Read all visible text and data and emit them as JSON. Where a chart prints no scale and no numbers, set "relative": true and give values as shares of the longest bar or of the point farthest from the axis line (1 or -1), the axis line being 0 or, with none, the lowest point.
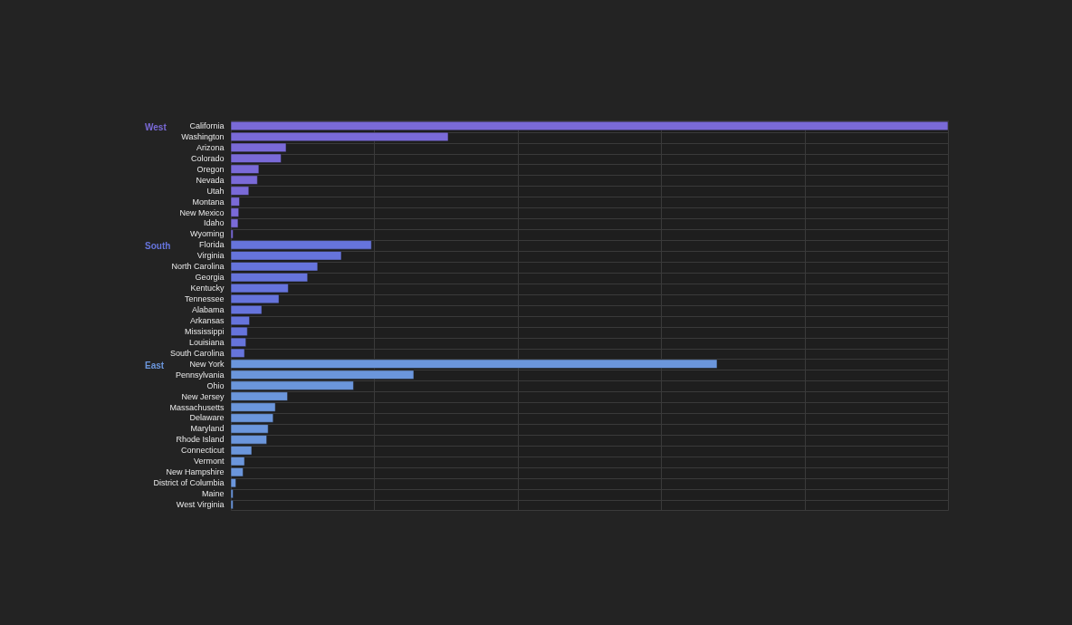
{
  "chart_data": {
    "type": "bar",
    "orientation": "horizontal",
    "relative": true,
    "grid": true,
    "legend": false,
    "categories": [
      "California",
      "Washington",
      "Arizona",
      "Colorado",
      "Oregon",
      "Nevada",
      "Utah",
      "Montana",
      "New Mexico",
      "Idaho",
      "Wyoming",
      "Florida",
      "Virginia",
      "North Carolina",
      "Georgia",
      "Kentucky",
      "Tennessee",
      "Alabama",
      "Arkansas",
      "Mississippi",
      "Louisiana",
      "South Carolina",
      "New York",
      "Pennsylvania",
      "Ohio",
      "New Jersey",
      "Massachusetts",
      "Delaware",
      "Maryland",
      "Rhode Island",
      "Connecticut",
      "Vermont",
      "New Hampshire",
      "District of Columbia",
      "Maine",
      "West Virginia"
    ],
    "series": [
      {
        "name": "West",
        "color": "#7a6ad8",
        "values": [
          1,
          0.303,
          0.077,
          0.07,
          0.039,
          0.037,
          0.025,
          0.012,
          0.011,
          0.01,
          0.003,
          null,
          null,
          null,
          null,
          null,
          null,
          null,
          null,
          null,
          null,
          null,
          null,
          null,
          null,
          null,
          null,
          null,
          null,
          null,
          null,
          null,
          null,
          null,
          null,
          null
        ]
      },
      {
        "name": "South",
        "color": "#6674dc",
        "values": [
          null,
          null,
          null,
          null,
          null,
          null,
          null,
          null,
          null,
          null,
          null,
          0.196,
          0.154,
          0.121,
          0.107,
          0.08,
          0.067,
          0.043,
          0.026,
          0.023,
          0.021,
          0.019,
          null,
          null,
          null,
          null,
          null,
          null,
          null,
          null,
          null,
          null,
          null,
          null,
          null,
          null
        ]
      },
      {
        "name": "East",
        "color": "#6b96dc",
        "values": [
          null,
          null,
          null,
          null,
          null,
          null,
          null,
          null,
          null,
          null,
          null,
          null,
          null,
          null,
          null,
          null,
          null,
          null,
          null,
          null,
          null,
          null,
          0.678,
          0.255,
          0.171,
          0.079,
          0.062,
          0.059,
          0.052,
          0.05,
          0.029,
          0.019,
          0.017,
          0.007,
          0.003,
          0.003
        ]
      }
    ]
  }
}
